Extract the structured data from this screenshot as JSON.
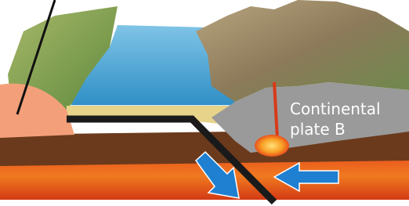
{
  "label_lines": [
    "Continental",
    "plate B"
  ]
}
